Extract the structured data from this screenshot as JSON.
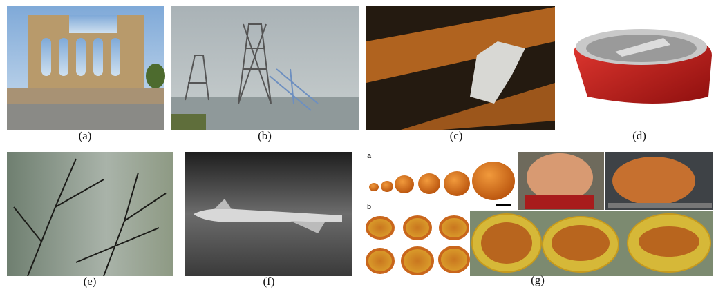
{
  "figure": {
    "panels": [
      {
        "caption": "(a)"
      },
      {
        "caption": "(b)"
      },
      {
        "caption": "(c)"
      },
      {
        "caption": "(d)"
      },
      {
        "caption": "(e)"
      },
      {
        "caption": "(f)"
      },
      {
        "caption": "(g)"
      }
    ],
    "inset_labels": [
      "a",
      "b"
    ]
  }
}
